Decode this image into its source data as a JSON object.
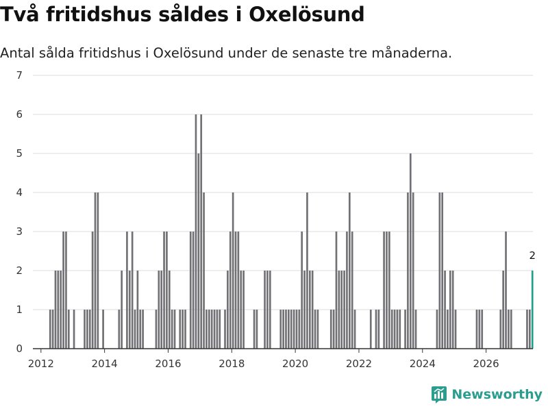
{
  "header": {
    "title": "Två fritidshus såldes i Oxelösund",
    "subtitle": "Antal sålda fritidshus i Oxelösund under de senaste tre månaderna."
  },
  "brand": {
    "name": "Newsworthy"
  },
  "colors": {
    "bar": "#707075",
    "highlight": "#1f9e8c",
    "grid": "#dddddd",
    "axis": "#333333"
  },
  "chart_data": {
    "type": "bar",
    "title": "Två fritidshus såldes i Oxelösund",
    "subtitle": "Antal sålda fritidshus i Oxelösund under de senaste tre månaderna.",
    "xlabel": "",
    "ylabel": "",
    "ylim": [
      0,
      7
    ],
    "y_ticks": [
      0,
      1,
      2,
      3,
      4,
      5,
      6,
      7
    ],
    "x_tick_labels": [
      "2012",
      "2014",
      "2016",
      "2018",
      "2020",
      "2022",
      "2024",
      "2026"
    ],
    "grid": "horizontal",
    "x_start": "2012-01",
    "interval": "monthly",
    "values": [
      0,
      0,
      0,
      1,
      1,
      2,
      2,
      2,
      3,
      3,
      1,
      0,
      1,
      0,
      0,
      0,
      1,
      1,
      1,
      3,
      4,
      4,
      0,
      1,
      0,
      0,
      0,
      0,
      0,
      1,
      2,
      0,
      3,
      2,
      3,
      1,
      2,
      1,
      1,
      0,
      0,
      0,
      0,
      1,
      2,
      2,
      3,
      3,
      2,
      1,
      1,
      0,
      1,
      1,
      1,
      0,
      3,
      3,
      6,
      5,
      6,
      4,
      1,
      1,
      1,
      1,
      1,
      1,
      0,
      1,
      2,
      3,
      4,
      3,
      3,
      2,
      2,
      0,
      0,
      0,
      1,
      1,
      0,
      0,
      2,
      2,
      2,
      0,
      0,
      0,
      1,
      1,
      1,
      1,
      1,
      1,
      1,
      1,
      3,
      2,
      4,
      2,
      2,
      1,
      1,
      0,
      0,
      0,
      0,
      1,
      1,
      3,
      2,
      2,
      2,
      3,
      4,
      3,
      1,
      0,
      0,
      0,
      0,
      0,
      1,
      0,
      1,
      1,
      0,
      3,
      3,
      3,
      1,
      1,
      1,
      1,
      0,
      1,
      4,
      5,
      4,
      1,
      0,
      0,
      0,
      0,
      0,
      0,
      0,
      1,
      4,
      4,
      2,
      1,
      2,
      2,
      1,
      0,
      0,
      0,
      0,
      0,
      0,
      0,
      1,
      1,
      1,
      0,
      0,
      0,
      0,
      0,
      0,
      1,
      2,
      3,
      1,
      1,
      0,
      0,
      0,
      0,
      0,
      1,
      1,
      2
    ],
    "highlight_last": true,
    "annotation": {
      "label": "2",
      "value": 2
    }
  }
}
